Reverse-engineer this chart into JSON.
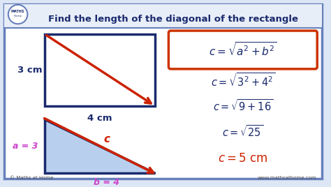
{
  "title": "Find the length of the diagonal of the rectangle",
  "bg_color": "#ffffff",
  "outer_bg": "#dce6f5",
  "border_color": "#6680bb",
  "title_color": "#1a2a6e",
  "rect_color": "#1a2a6e",
  "rect_fill": "#ffffff",
  "diag_color": "#cc2200",
  "triangle_fill": "#b8d0ee",
  "triangle_edge": "#1a2a6e",
  "label_3cm": "3 cm",
  "label_4cm": "4 cm",
  "label_a3": "a = 3",
  "label_b4": "b = 4",
  "label_c": "c",
  "formula_box_color": "#cc3300",
  "pink_color": "#cc44cc",
  "red_color": "#cc2200",
  "dark_blue": "#1a2a6e",
  "copyright": "© Maths at Home",
  "website": "www.mathsathome.com"
}
